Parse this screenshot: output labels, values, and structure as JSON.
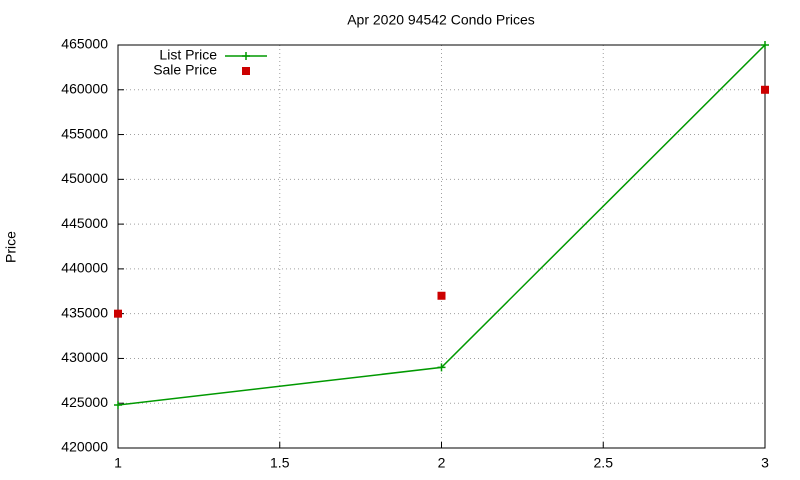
{
  "chart_data": {
    "type": "line",
    "title": "Apr 2020 94542 Condo Prices",
    "y_label": "Price",
    "x": [
      1,
      2,
      3
    ],
    "series": [
      {
        "name": "List Price",
        "color": "#009900",
        "style": "linespoints",
        "values": [
          424800,
          429000,
          465000
        ]
      },
      {
        "name": "Sale Price",
        "color": "#cc0000",
        "style": "points",
        "values": [
          435000,
          437000,
          460000
        ]
      }
    ],
    "xlim": [
      1,
      3
    ],
    "xticks": [
      1,
      1.5,
      2,
      2.5,
      3
    ],
    "ylim": [
      420000,
      465000
    ],
    "yticks": [
      420000,
      425000,
      430000,
      435000,
      440000,
      445000,
      450000,
      455000,
      460000,
      465000
    ],
    "grid": true,
    "legend": "top-left"
  }
}
